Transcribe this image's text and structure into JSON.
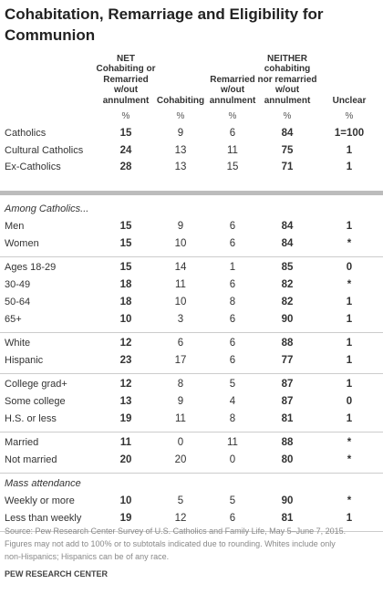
{
  "title": "Cohabitation, Remarriage and Eligibility for Communion",
  "columns": [
    [
      "NET",
      "Cohabiting or",
      "Remarried",
      "w/out",
      "annulment"
    ],
    [
      "Cohabiting"
    ],
    [
      "Remarried",
      "w/out",
      "annulment"
    ],
    [
      "NEITHER",
      "cohabiting",
      "nor remarried",
      "w/out",
      "annulment"
    ],
    [
      "Unclear"
    ]
  ],
  "units": [
    "%",
    "%",
    "%",
    "%",
    "%"
  ],
  "top_rows": [
    {
      "label": "Catholics",
      "values": [
        15,
        9,
        6,
        84,
        "1=100"
      ]
    },
    {
      "label": "Cultural Catholics",
      "values": [
        24,
        13,
        11,
        75,
        1
      ]
    },
    {
      "label": "Ex-Catholics",
      "values": [
        28,
        13,
        15,
        71,
        1
      ]
    }
  ],
  "sections": [
    {
      "heading": "Among Catholics...",
      "groups": [
        [
          {
            "label": "Men",
            "values": [
              15,
              9,
              6,
              84,
              1
            ]
          },
          {
            "label": "Women",
            "values": [
              15,
              10,
              6,
              84,
              "*"
            ]
          }
        ],
        [
          {
            "label": "Ages 18-29",
            "values": [
              15,
              14,
              1,
              85,
              0
            ]
          },
          {
            "label": "30-49",
            "values": [
              18,
              11,
              6,
              82,
              "*"
            ]
          },
          {
            "label": "50-64",
            "values": [
              18,
              10,
              8,
              82,
              1
            ]
          },
          {
            "label": "65+",
            "values": [
              10,
              3,
              6,
              90,
              1
            ]
          }
        ],
        [
          {
            "label": "White",
            "values": [
              12,
              6,
              6,
              88,
              1
            ]
          },
          {
            "label": "Hispanic",
            "values": [
              23,
              17,
              6,
              77,
              1
            ]
          }
        ],
        [
          {
            "label": "College grad+",
            "values": [
              12,
              8,
              5,
              87,
              1
            ]
          },
          {
            "label": "Some college",
            "values": [
              13,
              9,
              4,
              87,
              0
            ]
          },
          {
            "label": "H.S. or less",
            "values": [
              19,
              11,
              8,
              81,
              1
            ]
          }
        ],
        [
          {
            "label": "Married",
            "values": [
              11,
              0,
              11,
              88,
              "*"
            ]
          },
          {
            "label": "Not married",
            "values": [
              20,
              20,
              0,
              80,
              "*"
            ]
          }
        ]
      ]
    },
    {
      "heading": "Mass attendance",
      "groups": [
        [
          {
            "label": "Weekly or more",
            "values": [
              10,
              5,
              5,
              90,
              "*"
            ]
          },
          {
            "label": "Less than weekly",
            "values": [
              19,
              12,
              6,
              81,
              1
            ]
          }
        ]
      ]
    }
  ],
  "notes": [
    "Source: Pew Research Center Survey of U.S. Catholics and Family Life, May 5–June 7, 2015.",
    "Figures may not add to 100% or to subtotals indicated due to rounding. Whites include only",
    "non-Hispanics; Hispanics can be of any race."
  ],
  "footer": "PEW RESEARCH CENTER"
}
